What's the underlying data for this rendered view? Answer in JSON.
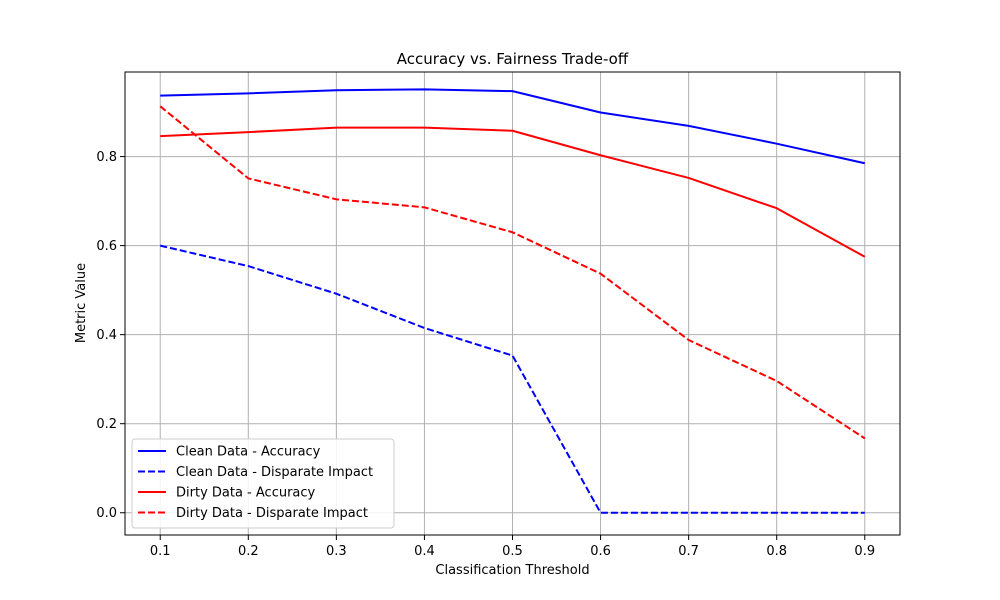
{
  "chart_data": {
    "type": "line",
    "title": "Accuracy vs. Fairness Trade-off",
    "xlabel": "Classification Threshold",
    "ylabel": "Metric Value",
    "x": [
      0.1,
      0.2,
      0.3,
      0.4,
      0.5,
      0.6,
      0.7,
      0.8,
      0.9
    ],
    "x_tick_labels": [
      "0.1",
      "0.2",
      "0.3",
      "0.4",
      "0.5",
      "0.6",
      "0.7",
      "0.8",
      "0.9"
    ],
    "y_ticks": [
      0.0,
      0.2,
      0.4,
      0.6,
      0.8
    ],
    "y_tick_labels": [
      "0.0",
      "0.2",
      "0.4",
      "0.6",
      "0.8"
    ],
    "xlim": [
      0.06,
      0.94
    ],
    "ylim": [
      -0.05,
      0.99
    ],
    "grid": true,
    "legend_position": "lower-left",
    "series": [
      {
        "name": "Clean Data - Accuracy",
        "color": "#0000ff",
        "dashed": false,
        "values": [
          0.937,
          0.942,
          0.949,
          0.951,
          0.947,
          0.899,
          0.869,
          0.829,
          0.785
        ]
      },
      {
        "name": "Clean Data - Disparate Impact",
        "color": "#0000ff",
        "dashed": true,
        "values": [
          0.6,
          0.554,
          0.492,
          0.415,
          0.353,
          0.0,
          0.0,
          0.0,
          0.0
        ]
      },
      {
        "name": "Dirty Data - Accuracy",
        "color": "#ff0000",
        "dashed": false,
        "values": [
          0.846,
          0.855,
          0.865,
          0.865,
          0.858,
          0.803,
          0.752,
          0.684,
          0.575
        ]
      },
      {
        "name": "Dirty Data - Disparate Impact",
        "color": "#ff0000",
        "dashed": true,
        "values": [
          0.913,
          0.751,
          0.704,
          0.686,
          0.63,
          0.537,
          0.388,
          0.296,
          0.167
        ]
      }
    ]
  }
}
